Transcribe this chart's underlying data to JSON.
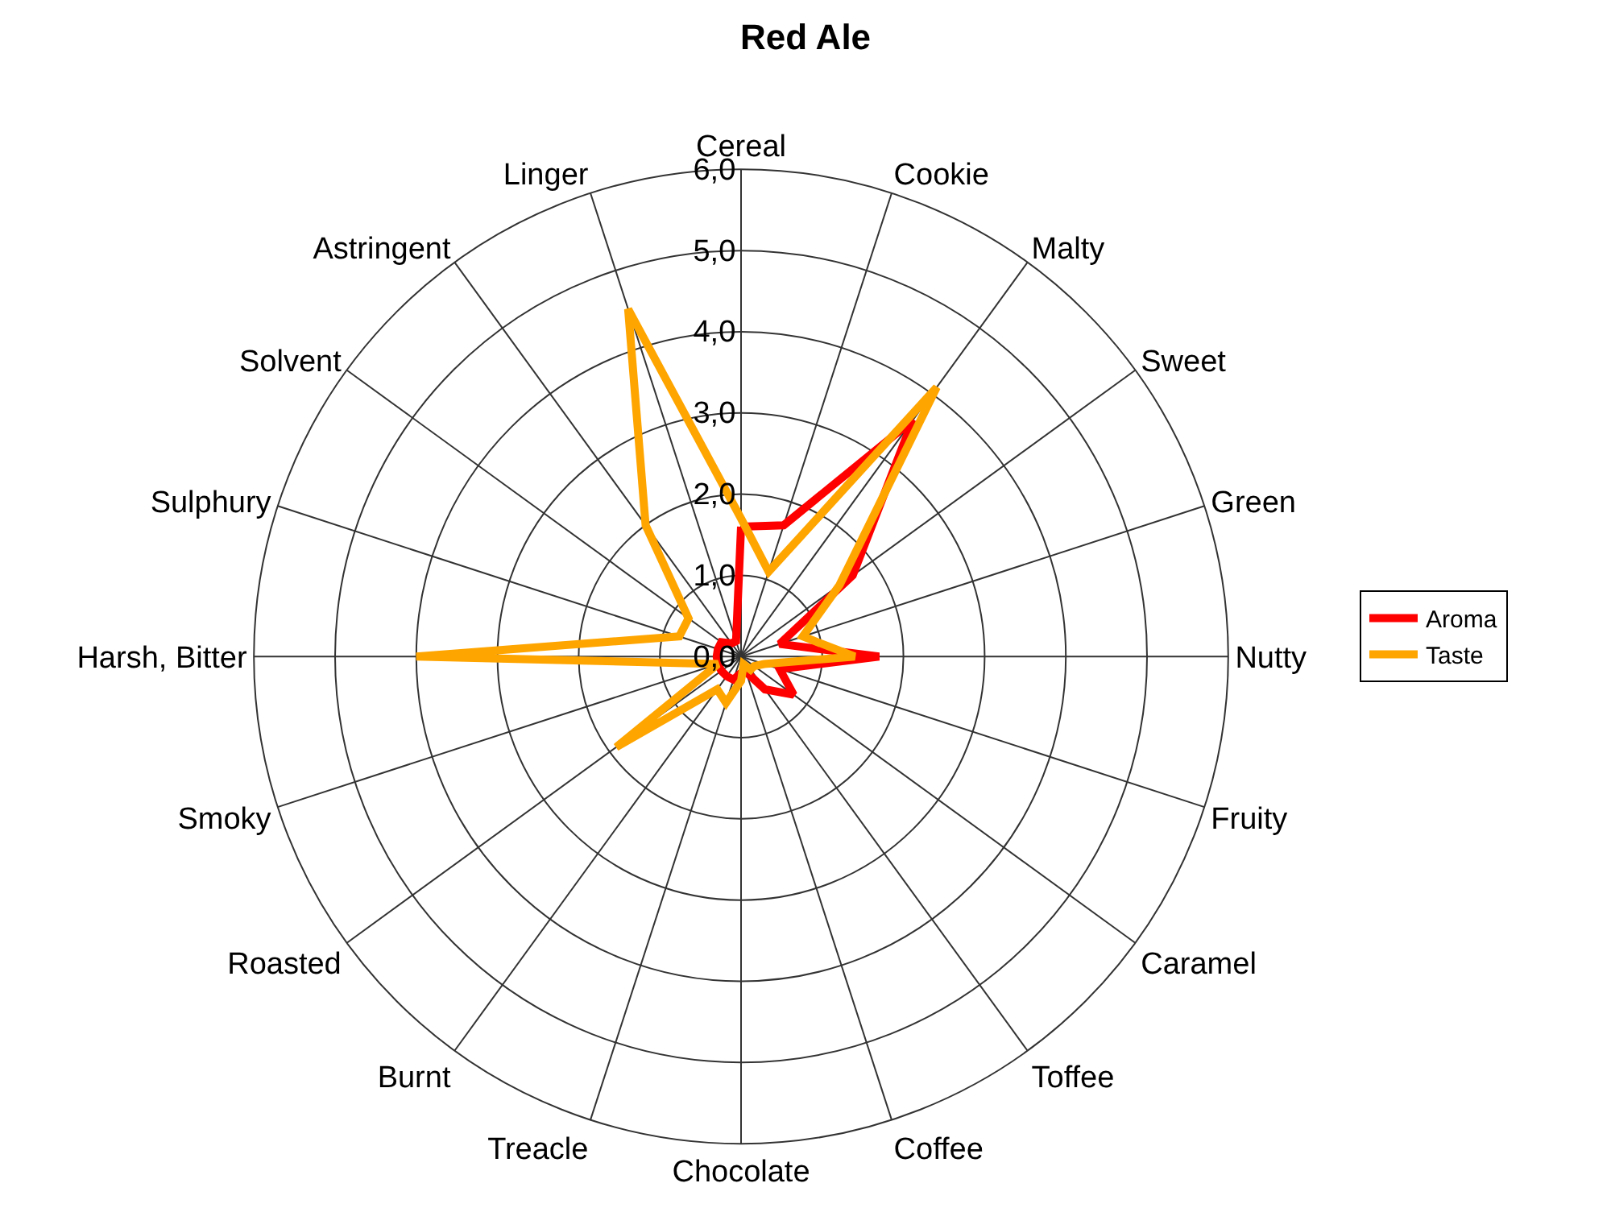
{
  "chart_data": {
    "type": "radar",
    "title": "Red Ale",
    "categories": [
      "Cereal",
      "Cookie",
      "Malty",
      "Sweet",
      "Green",
      "Nutty",
      "Fruity",
      "Caramel",
      "Toffee",
      "Coffee",
      "Chocolate",
      "Treacle",
      "Burnt",
      "Roasted",
      "Smoky",
      "Harsh, Bitter",
      "Sulphury",
      "Solvent",
      "Astringent",
      "Linger"
    ],
    "series": [
      {
        "name": "Aroma",
        "color": "#ff0000",
        "values": [
          1.6,
          1.7,
          3.6,
          1.7,
          0.5,
          1.7,
          0.5,
          0.8,
          0.5,
          0.2,
          0.2,
          0.3,
          0.3,
          0.3,
          0.3,
          0.3,
          0.3,
          0.3,
          0.2,
          0.2
        ]
      },
      {
        "name": "Taste",
        "color": "#ffa500",
        "values": [
          1.7,
          1.1,
          4.1,
          1.5,
          0.8,
          1.4,
          0.3,
          0.2,
          0.2,
          0.1,
          0.3,
          0.6,
          0.5,
          1.9,
          0.3,
          4.0,
          0.8,
          0.8,
          2.0,
          4.5
        ]
      }
    ],
    "ylim": [
      0,
      6
    ],
    "yticks": [
      {
        "value": 0,
        "label": "0,0"
      },
      {
        "value": 1,
        "label": "1,0"
      },
      {
        "value": 2,
        "label": "2,0"
      },
      {
        "value": 3,
        "label": "3,0"
      },
      {
        "value": 4,
        "label": "4,0"
      },
      {
        "value": 5,
        "label": "5,0"
      },
      {
        "value": 6,
        "label": "6,0"
      }
    ],
    "grid": true,
    "legend": "right",
    "line_style": "solid",
    "marker": "none"
  }
}
